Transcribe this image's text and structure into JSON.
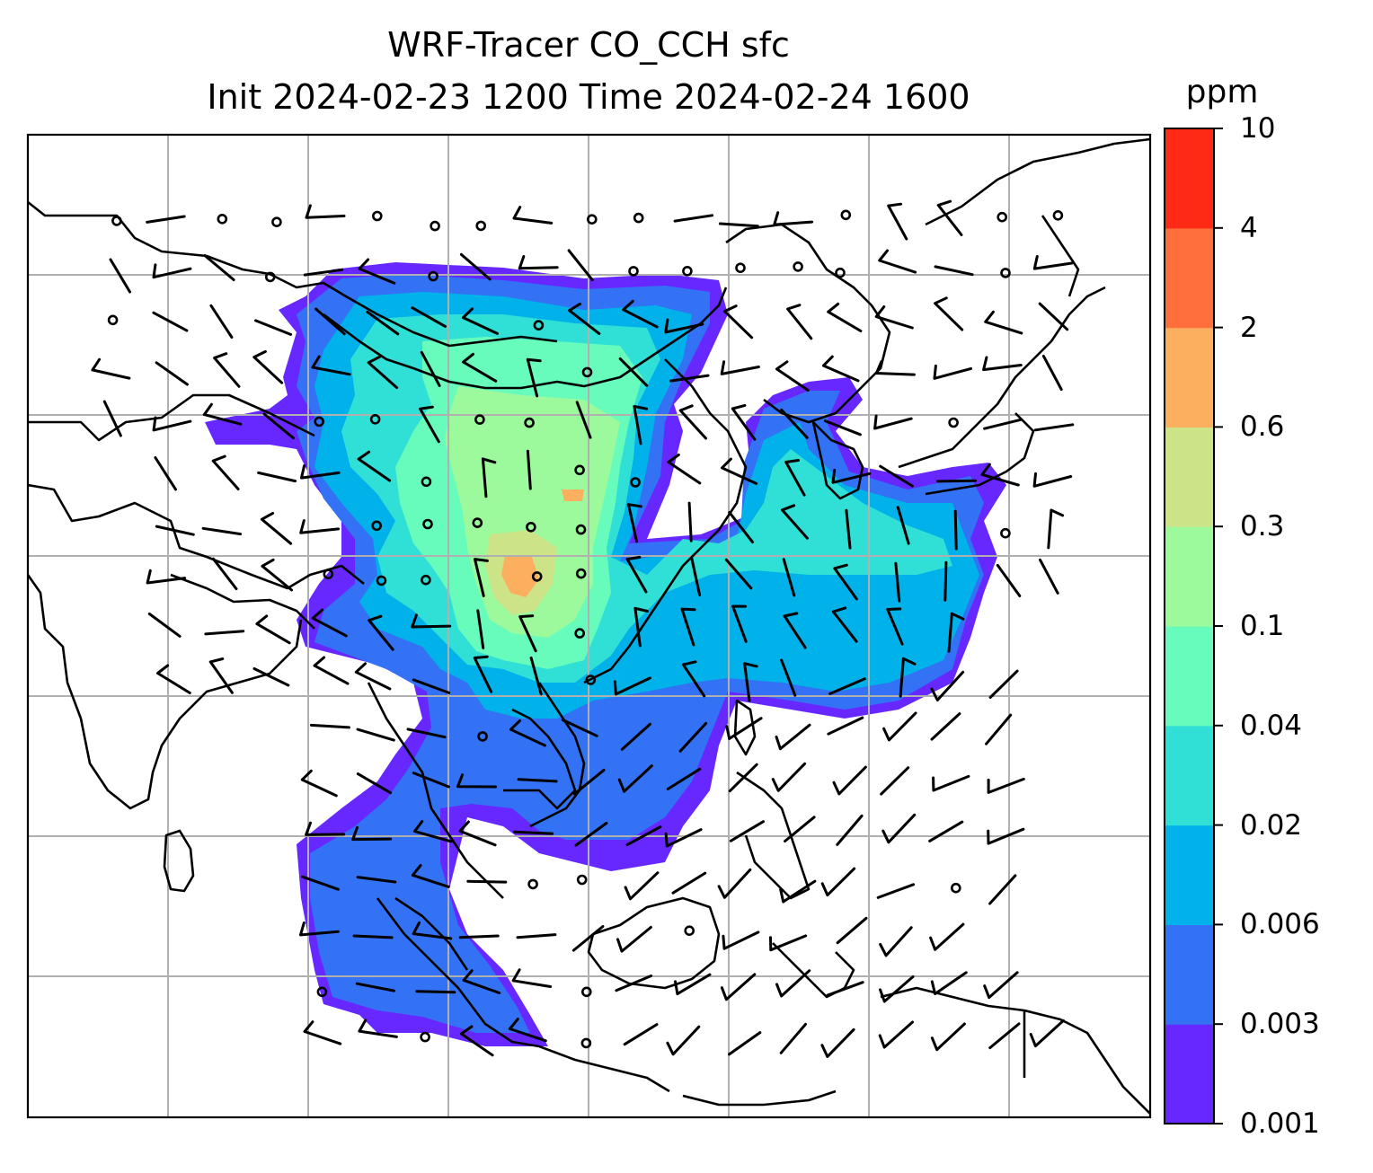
{
  "title": {
    "line1": "WRF-Tracer CO_CCH sfc",
    "line2": "Init 2024-02-23 1200 Time 2024-02-24 1600"
  },
  "colorbar": {
    "unit": "ppm",
    "levels": [
      "0.001",
      "0.003",
      "0.006",
      "0.02",
      "0.04",
      "0.1",
      "0.3",
      "0.6",
      "2",
      "4",
      "10"
    ],
    "colors": [
      "#6628ff",
      "#3371f5",
      "#00b1ea",
      "#30dfd5",
      "#67fcbc",
      "#9cfa9c",
      "#cde388",
      "#fdaf60",
      "#ff6f3b",
      "#ff2a15"
    ]
  },
  "map": {
    "gridlines": true,
    "coastline_color": "#000000",
    "wind_barb_color": "#000000"
  }
}
